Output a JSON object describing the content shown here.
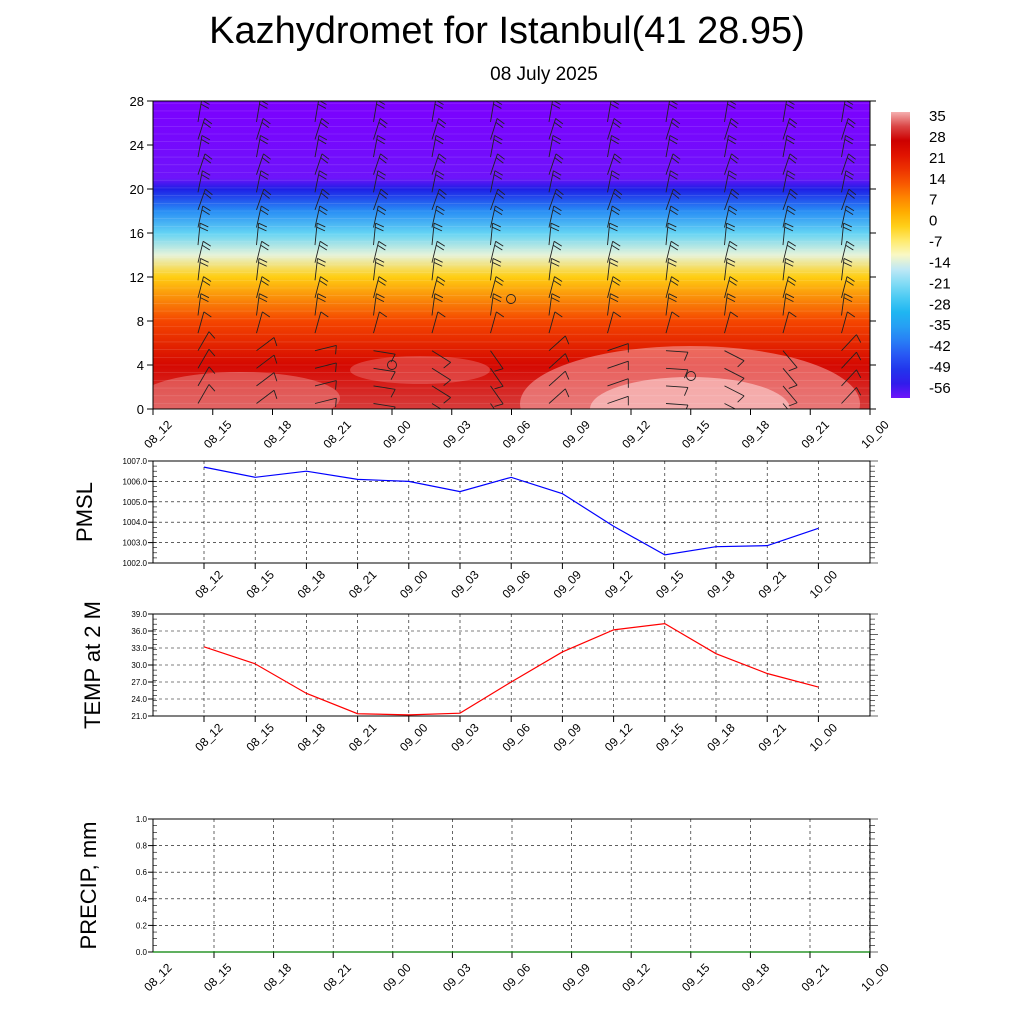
{
  "title": "Kazhydromet for Istanbul(41 28.95)",
  "subtitle": "08 July 2025",
  "colors": {
    "pmsl_line": "#0000ff",
    "temp_line": "#ff0000",
    "precip_line": "#008000",
    "grid": "#000000"
  },
  "chart_data": [
    {
      "type": "heatmap",
      "title": "",
      "x": [
        "08_12",
        "08_15",
        "08_18",
        "08_21",
        "09_00",
        "09_03",
        "09_06",
        "09_09",
        "09_12",
        "09_15",
        "09_18",
        "09_21",
        "10_00"
      ],
      "ylim": [
        0,
        28
      ],
      "yticks": [
        "0",
        "4",
        "8",
        "12",
        "16",
        "20",
        "24",
        "28"
      ],
      "colorbar_labels": [
        "35",
        "28",
        "21",
        "14",
        "7",
        "0",
        "-7",
        "-14",
        "-21",
        "-28",
        "-35",
        "-42",
        "-49",
        "-56"
      ],
      "colorbar_range": [
        -56,
        35
      ],
      "profile": [
        {
          "level": 0,
          "value": 30
        },
        {
          "level": 4,
          "value": 24
        },
        {
          "level": 8,
          "value": 14
        },
        {
          "level": 12,
          "value": -1
        },
        {
          "level": 14,
          "value": -12
        },
        {
          "level": 16,
          "value": -22
        },
        {
          "level": 18,
          "value": -36
        },
        {
          "level": 20,
          "value": -50
        },
        {
          "level": 21,
          "value": -56
        },
        {
          "level": 23,
          "value": -58
        },
        {
          "level": 28,
          "value": -62
        }
      ],
      "wind_barbs": true
    },
    {
      "type": "line",
      "ylabel": "PMSL",
      "categories": [
        "08_12",
        "08_15",
        "08_18",
        "08_21",
        "09_00",
        "09_03",
        "09_06",
        "09_09",
        "09_12",
        "09_15",
        "09_18",
        "09_21",
        "10_00"
      ],
      "ylim": [
        1002.0,
        1007.0
      ],
      "yticks": [
        "1002.0",
        "1003.0",
        "1004.0",
        "1005.0",
        "1006.0",
        "1007.0"
      ],
      "series": [
        {
          "values": [
            1006.7,
            1006.2,
            1006.5,
            1006.1,
            1006.0,
            1005.5,
            1006.2,
            1005.4,
            1003.8,
            1002.4,
            1002.8,
            1002.85,
            1003.7
          ]
        }
      ]
    },
    {
      "type": "line",
      "ylabel": "TEMP at 2 M",
      "categories": [
        "08_12",
        "08_15",
        "08_18",
        "08_21",
        "09_00",
        "09_03",
        "09_06",
        "09_09",
        "09_12",
        "09_15",
        "09_18",
        "09_21",
        "10_00"
      ],
      "ylim": [
        21.0,
        39.0
      ],
      "yticks": [
        "21.0",
        "24.0",
        "27.0",
        "30.0",
        "33.0",
        "36.0",
        "39.0"
      ],
      "series": [
        {
          "values": [
            33.2,
            30.2,
            25.0,
            21.4,
            21.2,
            21.5,
            27.0,
            32.3,
            36.2,
            37.3,
            32.0,
            28.5,
            26.1
          ]
        }
      ]
    },
    {
      "type": "line",
      "ylabel": "PRECIP, mm",
      "categories": [
        "08_12",
        "08_15",
        "08_18",
        "08_21",
        "09_00",
        "09_03",
        "09_06",
        "09_09",
        "09_12",
        "09_15",
        "09_18",
        "09_21",
        "10_00"
      ],
      "ylim": [
        0.0,
        1.0
      ],
      "yticks": [
        "0.0",
        "0.2",
        "0.4",
        "0.6",
        "0.8",
        "1.0"
      ],
      "series": [
        {
          "values": [
            0,
            0,
            0,
            0,
            0,
            0,
            0,
            0,
            0,
            0,
            0,
            0,
            0
          ]
        }
      ]
    }
  ]
}
